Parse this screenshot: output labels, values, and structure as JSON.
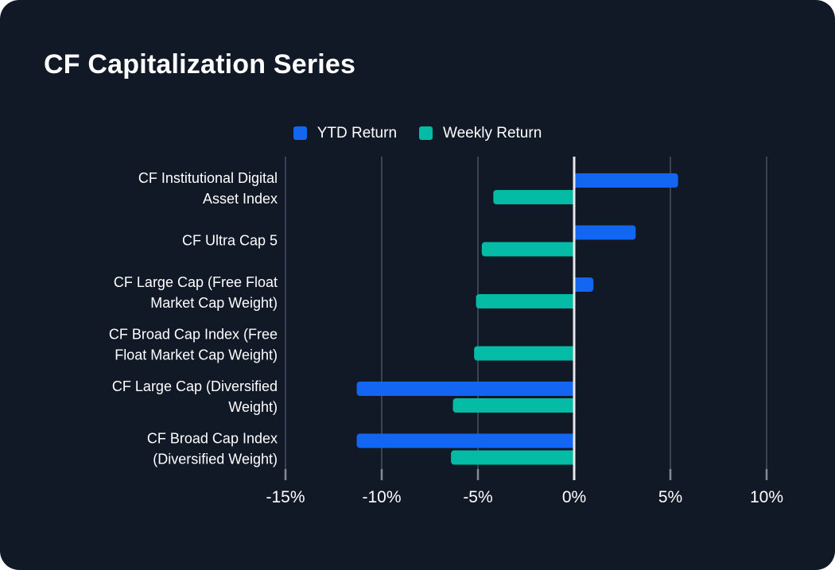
{
  "title": "CF Capitalization Series",
  "colors": {
    "background": "#111927",
    "bar_blue": "#1266F1",
    "bar_teal": "#04BCA5",
    "gridline": "#3A4253",
    "zero_line": "#E6E8EB",
    "tick": "#848B96",
    "text": "#FFFFFF"
  },
  "legend": [
    {
      "label": "YTD Return",
      "color": "#1266F1"
    },
    {
      "label": "Weekly Return",
      "color": "#04BCA5"
    }
  ],
  "chart_data": {
    "type": "bar",
    "orientation": "horizontal",
    "title": "CF Capitalization Series",
    "categories": [
      "CF Institutional Digital Asset Index",
      "CF Ultra Cap 5",
      "CF Large Cap (Free Float Market Cap Weight)",
      "CF Broad Cap Index (Free Float Market Cap Weight)",
      "CF Large Cap (Diversified Weight)",
      "CF Broad Cap Index (Diversified Weight)"
    ],
    "category_lines": [
      [
        "CF Institutional Digital",
        "Asset Index"
      ],
      [
        "CF Ultra Cap 5"
      ],
      [
        "CF Large Cap (Free Float",
        "Market Cap Weight)"
      ],
      [
        "CF Broad Cap Index (Free",
        "Float Market Cap Weight)"
      ],
      [
        "CF Large Cap (Diversified",
        "Weight)"
      ],
      [
        "CF Broad Cap Index",
        "(Diversified Weight)"
      ]
    ],
    "series": [
      {
        "name": "YTD Return",
        "color": "#1266F1",
        "values": [
          5.4,
          3.2,
          1.0,
          0.0,
          -11.3,
          -11.3
        ]
      },
      {
        "name": "Weekly Return",
        "color": "#04BCA5",
        "values": [
          -4.2,
          -4.8,
          -5.1,
          -5.2,
          -6.3,
          -6.4
        ]
      }
    ],
    "x_ticks": [
      "-15%",
      "-10%",
      "-5%",
      "0%",
      "5%",
      "10%"
    ],
    "x_tick_values": [
      -15,
      -10,
      -5,
      0,
      5,
      10
    ],
    "xlim": [
      -15,
      10
    ],
    "unit": "%",
    "legend_position": "top",
    "grid": "vertical-only",
    "zero_line": true
  }
}
